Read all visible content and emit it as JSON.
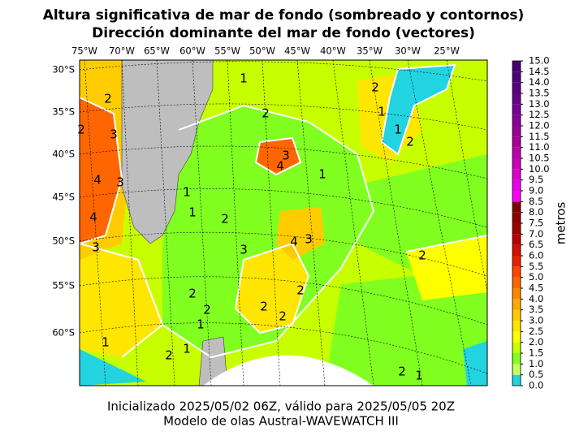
{
  "title": [
    "Altura significativa de mar de fondo (sombreado y contornos)",
    "Dirección dominante del mar de fondo (vectores)"
  ],
  "footer": [
    "Inicializado 2025/05/02 06Z, válido para 2025/05/05 20Z",
    "Modelo de olas Austral-WAVEWATCH III"
  ],
  "lon_labels": [
    "75°W",
    "70°W",
    "65°W",
    "60°W",
    "55°W",
    "50°W",
    "45°W",
    "40°W",
    "35°W",
    "30°W",
    "25°W"
  ],
  "lat_labels": [
    "30°S",
    "35°S",
    "40°S",
    "45°S",
    "50°S",
    "55°S",
    "60°S"
  ],
  "colorbar": {
    "label": "metros",
    "ticks": [
      {
        "value": 0,
        "label": "0.0"
      },
      {
        "value": 0.5,
        "label": "0.5"
      },
      {
        "value": 1,
        "label": "1.0"
      },
      {
        "value": 1.5,
        "label": "1.5"
      },
      {
        "value": 2,
        "label": "2.0"
      },
      {
        "value": 2.5,
        "label": "2.5"
      },
      {
        "value": 3,
        "label": "3.0"
      },
      {
        "value": 3.5,
        "label": "3.5"
      },
      {
        "value": 4,
        "label": "4.0"
      },
      {
        "value": 4.5,
        "label": "4.5"
      },
      {
        "value": 5,
        "label": "5.0"
      },
      {
        "value": 5.5,
        "label": "5.5"
      },
      {
        "value": 6,
        "label": "6.0"
      },
      {
        "value": 6.5,
        "label": "6.5"
      },
      {
        "value": 7,
        "label": "7.0"
      },
      {
        "value": 7.5,
        "label": "7.5"
      },
      {
        "value": 8,
        "label": "8.0"
      },
      {
        "value": 8.5,
        "label": "8.5"
      },
      {
        "value": 9,
        "label": "9.0"
      },
      {
        "value": 9.5,
        "label": "9.5"
      },
      {
        "value": 10,
        "label": "10.0"
      },
      {
        "value": 10.5,
        "label": "10.5"
      },
      {
        "value": 11,
        "label": "11.0"
      },
      {
        "value": 11.5,
        "label": "11.5"
      },
      {
        "value": 12,
        "label": "12.0"
      },
      {
        "value": 12.5,
        "label": "12.5"
      },
      {
        "value": 13,
        "label": "13.0"
      },
      {
        "value": 13.5,
        "label": "13.5"
      },
      {
        "value": 14,
        "label": "14.0"
      },
      {
        "value": 14.5,
        "label": "14.5"
      },
      {
        "value": 15,
        "label": "15.0"
      }
    ],
    "colors": [
      "#22d3e0",
      "#c8ff60",
      "#80ff20",
      "#c8ff00",
      "#ffff00",
      "#ffe600",
      "#ffcc00",
      "#ffaa00",
      "#ff8800",
      "#ff6600",
      "#ff4400",
      "#e82200",
      "#d01000",
      "#b80000",
      "#a00000",
      "#900000",
      "#800000",
      "#ff00ff",
      "#ee00ee",
      "#dd00cc",
      "#cc00bb",
      "#bb00aa",
      "#aa0099",
      "#990099",
      "#880099",
      "#770099",
      "#660088",
      "#5a0080",
      "#500078",
      "#480070"
    ]
  },
  "contour_labels": [
    1,
    2,
    2,
    1,
    1,
    2,
    1,
    4,
    3,
    3,
    4,
    4,
    3,
    3,
    1,
    1,
    2,
    3,
    4,
    3,
    2,
    2,
    2,
    2,
    2,
    2,
    1,
    1,
    2,
    1,
    2,
    1,
    2,
    2
  ]
}
